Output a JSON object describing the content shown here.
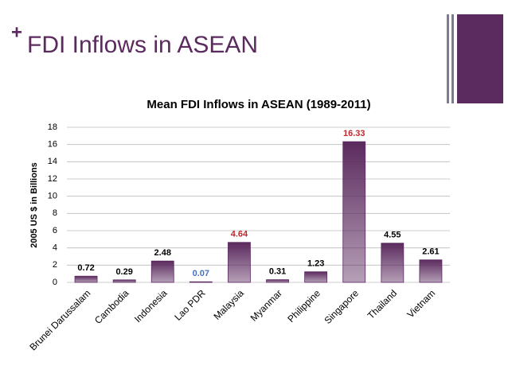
{
  "slide": {
    "marker": "+",
    "title": "FDI Inflows in ASEAN"
  },
  "chart_data": {
    "type": "bar",
    "title": "Mean FDI Inflows in ASEAN (1989-2011)",
    "y_label": "2005 US $ in Billions",
    "categories": [
      "Brunei Darussalam",
      "Cambodia",
      "Indonesia",
      "Lao PDR",
      "Malaysia",
      "Myanmar",
      "Philippine",
      "Singapore",
      "Thailand",
      "Vietnam"
    ],
    "values": [
      0.72,
      0.29,
      2.48,
      0.07,
      4.64,
      0.31,
      1.23,
      16.33,
      4.55,
      2.61
    ],
    "label_colors": [
      "#000000",
      "#000000",
      "#000000",
      "#4472c4",
      "#c0282d",
      "#000000",
      "#000000",
      "#c0282d",
      "#000000",
      "#000000"
    ],
    "color": "#5b2a5e",
    "ylim": [
      0,
      18
    ],
    "yticks": [
      0,
      2,
      4,
      6,
      8,
      10,
      12,
      14,
      16,
      18
    ],
    "grid": true
  }
}
